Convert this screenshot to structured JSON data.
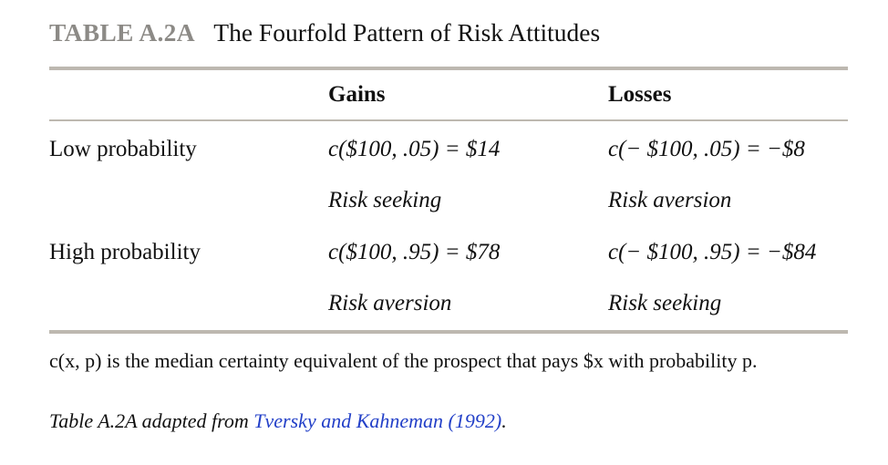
{
  "caption": {
    "label": "TABLE A.2A",
    "title": "The Fourfold Pattern of Risk Attitudes"
  },
  "table": {
    "columns": [
      "Gains",
      "Losses"
    ],
    "rows": [
      {
        "label": "Low probability",
        "gains_formula": "c($100, .05) = $14",
        "gains_attitude": "Risk seeking",
        "losses_formula": "c(− $100, .05) = −$8",
        "losses_attitude": "Risk aversion"
      },
      {
        "label": "High probability",
        "gains_formula": "c($100, .95) = $78",
        "gains_attitude": "Risk aversion",
        "losses_formula": "c(− $100, .95) = −$84",
        "losses_attitude": "Risk seeking"
      }
    ]
  },
  "footnote": {
    "definition": "c(x, p) is the median certainty equivalent of the prospect that pays $x with probability p.",
    "source_prefix": "Table A.2A adapted from ",
    "source_link": "Tversky and Kahneman (1992)",
    "source_suffix": "."
  }
}
